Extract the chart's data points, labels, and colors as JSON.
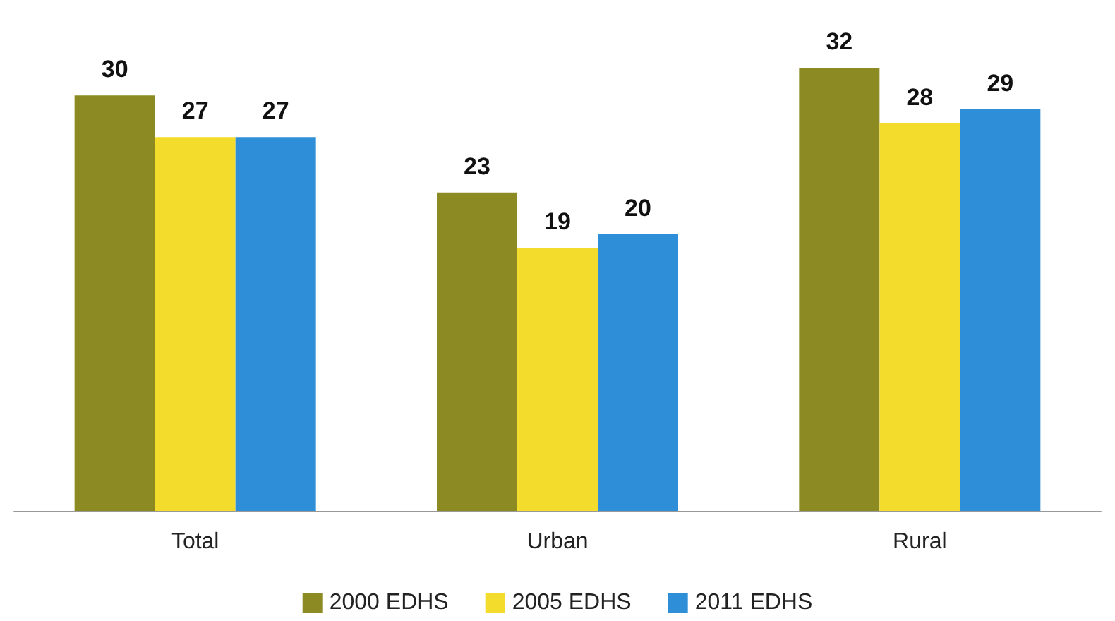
{
  "chart_data": {
    "type": "bar",
    "categories": [
      "Total",
      "Urban",
      "Rural"
    ],
    "series": [
      {
        "name": "2000 EDHS",
        "color": "#8c8a22",
        "values": [
          30,
          23,
          32
        ]
      },
      {
        "name": "2005 EDHS",
        "color": "#f4dc2c",
        "values": [
          27,
          19,
          28
        ]
      },
      {
        "name": "2011 EDHS",
        "color": "#2e8fd8",
        "values": [
          27,
          20,
          29
        ]
      }
    ],
    "data_labels": true,
    "legend": "bottom"
  }
}
